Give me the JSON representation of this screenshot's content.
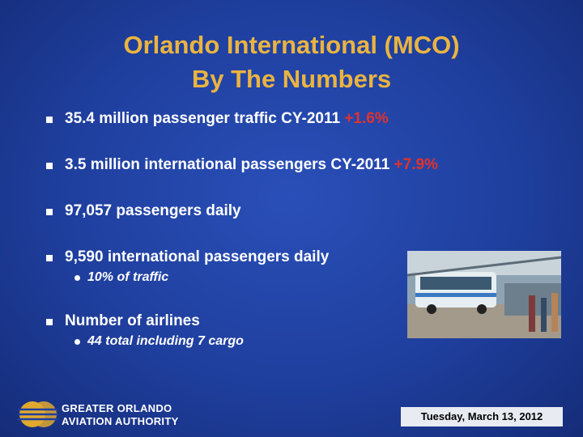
{
  "title": [
    "Orlando International (MCO)",
    "By The Numbers"
  ],
  "bullets": [
    {
      "text": "35.4 million passenger traffic CY-2011",
      "highlight": "+1.6%"
    },
    {
      "text": "3.5 million international passengers CY-2011",
      "highlight": "+7.9%"
    },
    {
      "text": "97,057 passengers daily"
    },
    {
      "text": "9,590 international passengers daily",
      "sub": [
        "10% of traffic"
      ]
    },
    {
      "text": "Number of airlines",
      "sub": [
        "44 total including 7 cargo"
      ]
    }
  ],
  "footer": {
    "logo": [
      "GREATER ORLANDO",
      "AVIATION AUTHORITY"
    ],
    "date": "Tuesday, March 13, 2012"
  }
}
